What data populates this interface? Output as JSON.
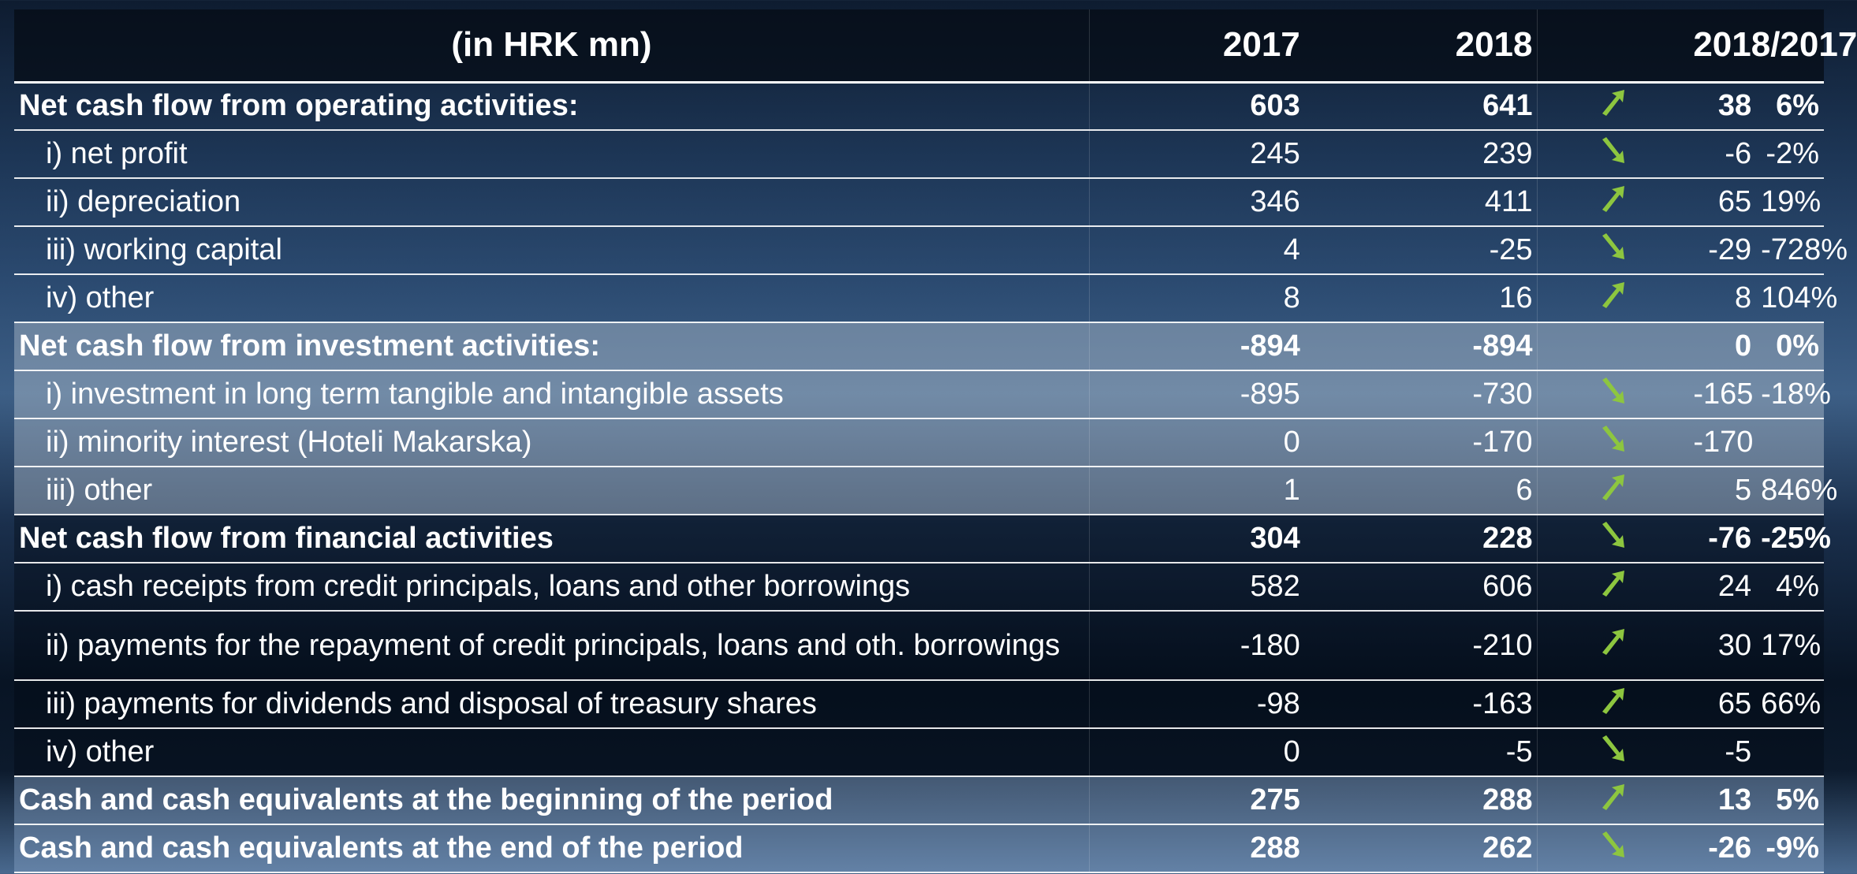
{
  "table": {
    "header": [
      "(in HRK mn)",
      "2017",
      "2018",
      "2018/2017"
    ],
    "rows": [
      [
        "Net cash flow from operating activities:",
        "603",
        "641",
        "38",
        "6%"
      ],
      [
        "i) net profit",
        "245",
        "239",
        "-6",
        "-2%"
      ],
      [
        "ii) depreciation",
        "346",
        "411",
        "65",
        "19%"
      ],
      [
        "iii) working capital",
        "4",
        "-25",
        "-29",
        "-728%"
      ],
      [
        "iv) other",
        "8",
        "16",
        "8",
        "104%"
      ],
      [
        "Net cash flow from investment activities:",
        "-894",
        "-894",
        "0",
        "0%"
      ],
      [
        "i) investment in long term tangible and intangible assets",
        "-895",
        "-730",
        "-165",
        "-18%"
      ],
      [
        "ii) minority interest (Hoteli Makarska)",
        "0",
        "-170",
        "-170",
        null
      ],
      [
        "iii) other",
        "1",
        "6",
        "5",
        "846%"
      ],
      [
        "Net cash flow from financial activities",
        "304",
        "228",
        "-76",
        "-25%"
      ],
      [
        "i) cash receipts from credit principals, loans and other borrowings",
        "582",
        "606",
        "24",
        "4%"
      ],
      [
        "ii) payments for the repayment of credit principals, loans and oth. borrowings",
        "-180",
        "-210",
        "30",
        "17%"
      ],
      [
        "iii) payments for dividends and disposal of treasury shares",
        "-98",
        "-163",
        "65",
        "66%"
      ],
      [
        "iv) other",
        "0",
        "-5",
        "-5",
        null
      ],
      [
        "Cash and cash equivalents at the beginning of the period",
        "275",
        "288",
        "13",
        "5%"
      ],
      [
        "Cash and cash equivalents at the end of the period",
        "288",
        "262",
        "-26",
        "-9%"
      ]
    ]
  }
}
